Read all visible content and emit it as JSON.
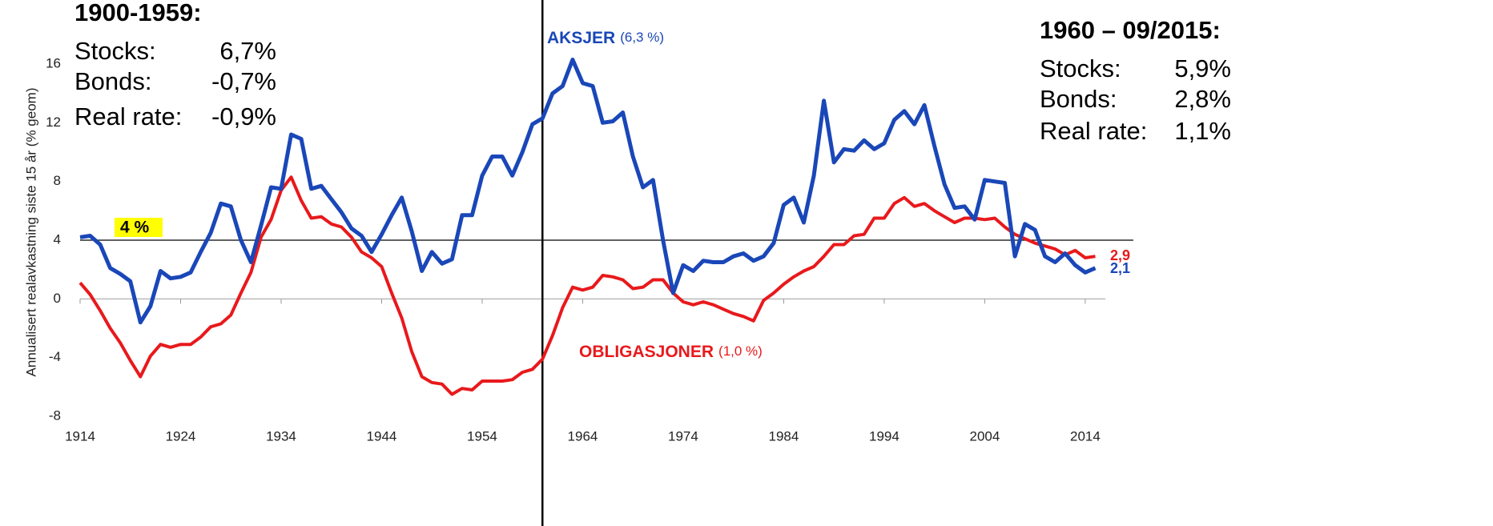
{
  "chart_data": {
    "type": "line",
    "y_label": "Annualisert realavkastning siste 15 år (% geom)",
    "x": [
      1914,
      1915,
      1916,
      1917,
      1918,
      1919,
      1920,
      1921,
      1922,
      1923,
      1924,
      1925,
      1926,
      1927,
      1928,
      1929,
      1930,
      1931,
      1932,
      1933,
      1934,
      1935,
      1936,
      1937,
      1938,
      1939,
      1940,
      1941,
      1942,
      1943,
      1944,
      1945,
      1946,
      1947,
      1948,
      1949,
      1950,
      1951,
      1952,
      1953,
      1954,
      1955,
      1956,
      1957,
      1958,
      1959,
      1960,
      1961,
      1962,
      1963,
      1964,
      1965,
      1966,
      1967,
      1968,
      1969,
      1970,
      1971,
      1972,
      1973,
      1974,
      1975,
      1976,
      1977,
      1978,
      1979,
      1980,
      1981,
      1982,
      1983,
      1984,
      1985,
      1986,
      1987,
      1988,
      1989,
      1990,
      1991,
      1992,
      1993,
      1994,
      1995,
      1996,
      1997,
      1998,
      1999,
      2000,
      2001,
      2002,
      2003,
      2004,
      2005,
      2006,
      2007,
      2008,
      2009,
      2010,
      2011,
      2012,
      2013,
      2014,
      2015
    ],
    "series": [
      {
        "name": "AKSJER",
        "name_suffix": "(6,3 %)",
        "color": "#1a47b8",
        "end_label": "2,1",
        "values": [
          4.2,
          4.3,
          3.7,
          2.1,
          1.7,
          1.2,
          -1.6,
          -0.5,
          1.9,
          1.4,
          1.5,
          1.8,
          3.2,
          4.5,
          6.5,
          6.3,
          4.0,
          2.5,
          5.0,
          7.6,
          7.5,
          11.2,
          10.9,
          7.5,
          7.7,
          6.8,
          5.9,
          4.8,
          4.3,
          3.2,
          4.4,
          5.7,
          6.9,
          4.6,
          1.9,
          3.2,
          2.4,
          2.7,
          5.7,
          5.7,
          8.4,
          9.7,
          9.7,
          8.4,
          10.0,
          11.9,
          12.3,
          14.0,
          14.5,
          16.3,
          14.7,
          14.5,
          12.0,
          12.1,
          12.7,
          9.7,
          7.6,
          8.1,
          4.0,
          0.4,
          2.3,
          1.9,
          2.6,
          2.5,
          2.5,
          2.9,
          3.1,
          2.6,
          2.9,
          3.8,
          6.4,
          6.9,
          5.2,
          8.4,
          13.5,
          9.3,
          10.2,
          10.1,
          10.8,
          10.2,
          10.6,
          12.2,
          12.8,
          11.9,
          13.2,
          10.4,
          7.8,
          6.2,
          6.3,
          5.4,
          8.1,
          8.0,
          7.9,
          2.9,
          5.1,
          4.7,
          2.9,
          2.5,
          3.1,
          2.3,
          1.8,
          2.1
        ]
      },
      {
        "name": "OBLIGASJONER",
        "name_suffix": "(1,0 %)",
        "color": "#e8191c",
        "end_label": "2,9",
        "values": [
          1.1,
          0.3,
          -0.8,
          -2.0,
          -3.0,
          -4.2,
          -5.3,
          -3.9,
          -3.1,
          -3.3,
          -3.1,
          -3.1,
          -2.6,
          -1.9,
          -1.7,
          -1.1,
          0.4,
          1.8,
          4.2,
          5.4,
          7.4,
          8.3,
          6.7,
          5.5,
          5.6,
          5.1,
          4.9,
          4.2,
          3.2,
          2.8,
          2.2,
          0.4,
          -1.3,
          -3.6,
          -5.3,
          -5.7,
          -5.8,
          -6.5,
          -6.1,
          -6.2,
          -5.6,
          -5.6,
          -5.6,
          -5.5,
          -5.0,
          -4.8,
          -4.1,
          -2.5,
          -0.6,
          0.8,
          0.6,
          0.8,
          1.6,
          1.5,
          1.3,
          0.7,
          0.8,
          1.3,
          1.3,
          0.4,
          -0.2,
          -0.4,
          -0.2,
          -0.4,
          -0.7,
          -1.0,
          -1.2,
          -1.5,
          -0.1,
          0.4,
          1.0,
          1.5,
          1.9,
          2.2,
          2.9,
          3.7,
          3.7,
          4.3,
          4.4,
          5.5,
          5.5,
          6.5,
          6.9,
          6.3,
          6.5,
          6.0,
          5.6,
          5.2,
          5.5,
          5.5,
          5.4,
          5.5,
          4.9,
          4.4,
          4.1,
          3.8,
          3.6,
          3.4,
          3.0,
          3.3,
          2.8,
          2.9
        ]
      }
    ],
    "xlim": [
      1914,
      2016
    ],
    "ylim": [
      -8,
      16
    ],
    "xticks": [
      1914,
      1924,
      1934,
      1944,
      1954,
      1964,
      1974,
      1984,
      1994,
      2004,
      2014
    ],
    "yticks": [
      -8,
      -4,
      0,
      4,
      8,
      12,
      16
    ],
    "reference_line": {
      "value": 4,
      "label": "4 %"
    },
    "divider_x": 1960,
    "panels": [
      {
        "title": "1900-1959:",
        "rows": [
          [
            "Stocks:",
            "6,7%"
          ],
          [
            "Bonds:",
            "-0,7%"
          ],
          [
            "Real rate:",
            "-0,9%"
          ]
        ]
      },
      {
        "title": "1960 – 09/2015:",
        "rows": [
          [
            "Stocks:",
            "5,9%"
          ],
          [
            "Bonds:",
            "2,8%"
          ],
          [
            "Real rate:",
            "1,1%"
          ]
        ]
      }
    ]
  }
}
